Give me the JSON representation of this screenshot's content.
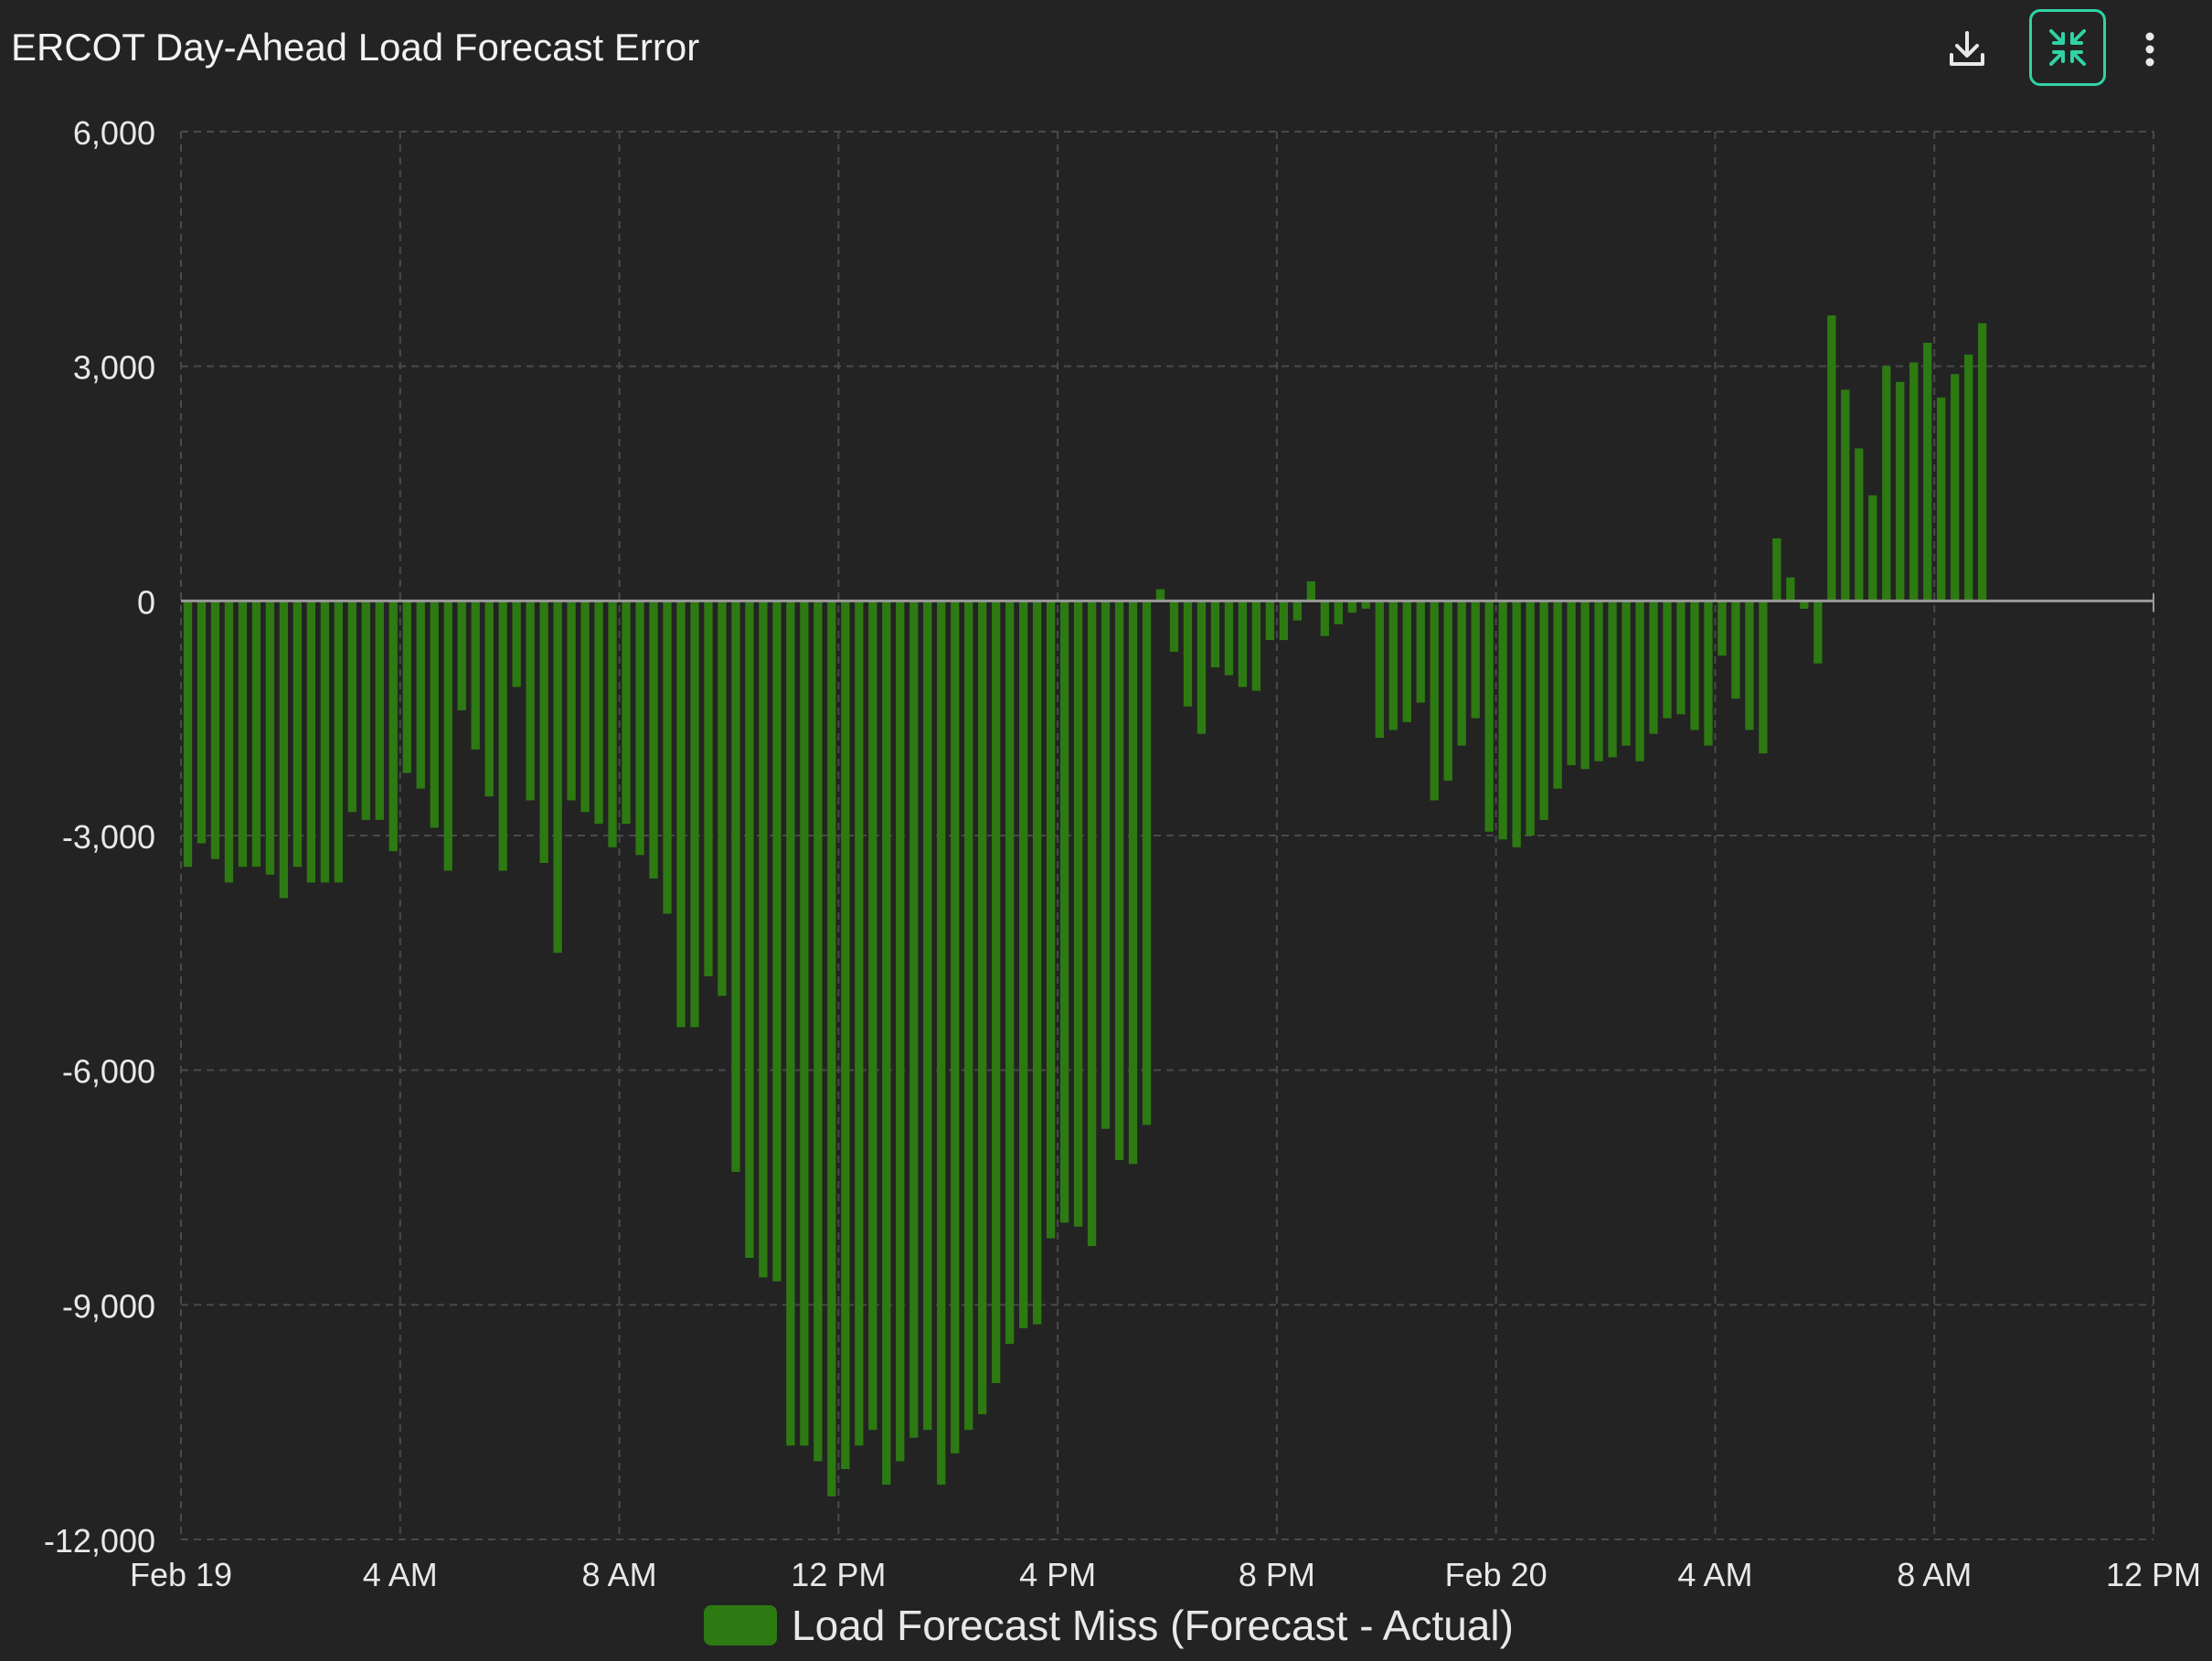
{
  "header": {
    "title": "ERCOT Day-Ahead Load Forecast Error"
  },
  "toolbar": {
    "download_icon": "download-icon",
    "collapse_icon": "collapse-icon",
    "more_icon": "more-vertical-icon",
    "accent_color": "#2fd3a6"
  },
  "legend": {
    "label": "Load Forecast Miss (Forecast - Actual)",
    "color": "#2d7a12"
  },
  "chart_data": {
    "type": "bar",
    "title": "ERCOT Day-Ahead Load Forecast Error",
    "xlabel": "",
    "ylabel": "",
    "ylim": [
      -12000,
      6000
    ],
    "y_ticks": [
      "6,000",
      "3,000",
      "0",
      "-3,000",
      "-6,000",
      "-9,000",
      "-12,000"
    ],
    "y_tick_values": [
      6000,
      3000,
      0,
      -3000,
      -6000,
      -9000,
      -12000
    ],
    "x_ticks": [
      "Feb 19",
      "4 AM",
      "8 AM",
      "12 PM",
      "4 PM",
      "8 PM",
      "Feb 20",
      "4 AM",
      "8 AM",
      "12 PM"
    ],
    "x_tick_hours": [
      0,
      4,
      8,
      12,
      16,
      20,
      24,
      28,
      32,
      36
    ],
    "x_range_hours": [
      0,
      36
    ],
    "interval_minutes": 15,
    "grid": true,
    "bar_color": "#2d7a12",
    "series": [
      {
        "name": "Load Forecast Miss (Forecast - Actual)",
        "values": [
          -3400,
          -3100,
          -3300,
          -3600,
          -3400,
          -3400,
          -3500,
          -3800,
          -3400,
          -3600,
          -3600,
          -3600,
          -2700,
          -2800,
          -2800,
          -3200,
          -2200,
          -2400,
          -2900,
          -3450,
          -1400,
          -1900,
          -2500,
          -3450,
          -1100,
          -2550,
          -3350,
          -4500,
          -2550,
          -2700,
          -2850,
          -3150,
          -2850,
          -3250,
          -3550,
          -4000,
          -5450,
          -5450,
          -4800,
          -5050,
          -7300,
          -8400,
          -8650,
          -8700,
          -10800,
          -10800,
          -11000,
          -11450,
          -11100,
          -10800,
          -10600,
          -11300,
          -11000,
          -10700,
          -10600,
          -11300,
          -10900,
          -10600,
          -10400,
          -10000,
          -9500,
          -9300,
          -9250,
          -8150,
          -7950,
          -8000,
          -8250,
          -6750,
          -7150,
          -7200,
          -6700,
          150,
          -650,
          -1350,
          -1700,
          -850,
          -950,
          -1100,
          -1150,
          -500,
          -500,
          -250,
          250,
          -450,
          -300,
          -150,
          -100,
          -1750,
          -1650,
          -1550,
          -1300,
          -2550,
          -2300,
          -1850,
          -1500,
          -2950,
          -3050,
          -3150,
          -3000,
          -2800,
          -2400,
          -2100,
          -2150,
          -2050,
          -2000,
          -1850,
          -2050,
          -1700,
          -1500,
          -1450,
          -1650,
          -1850,
          -700,
          -1250,
          -1650,
          -1950,
          800,
          300,
          -100,
          -800,
          3650,
          2700,
          1950,
          1350,
          3000,
          2800,
          3050,
          3300,
          2600,
          2900,
          3150,
          3550
        ]
      }
    ]
  }
}
